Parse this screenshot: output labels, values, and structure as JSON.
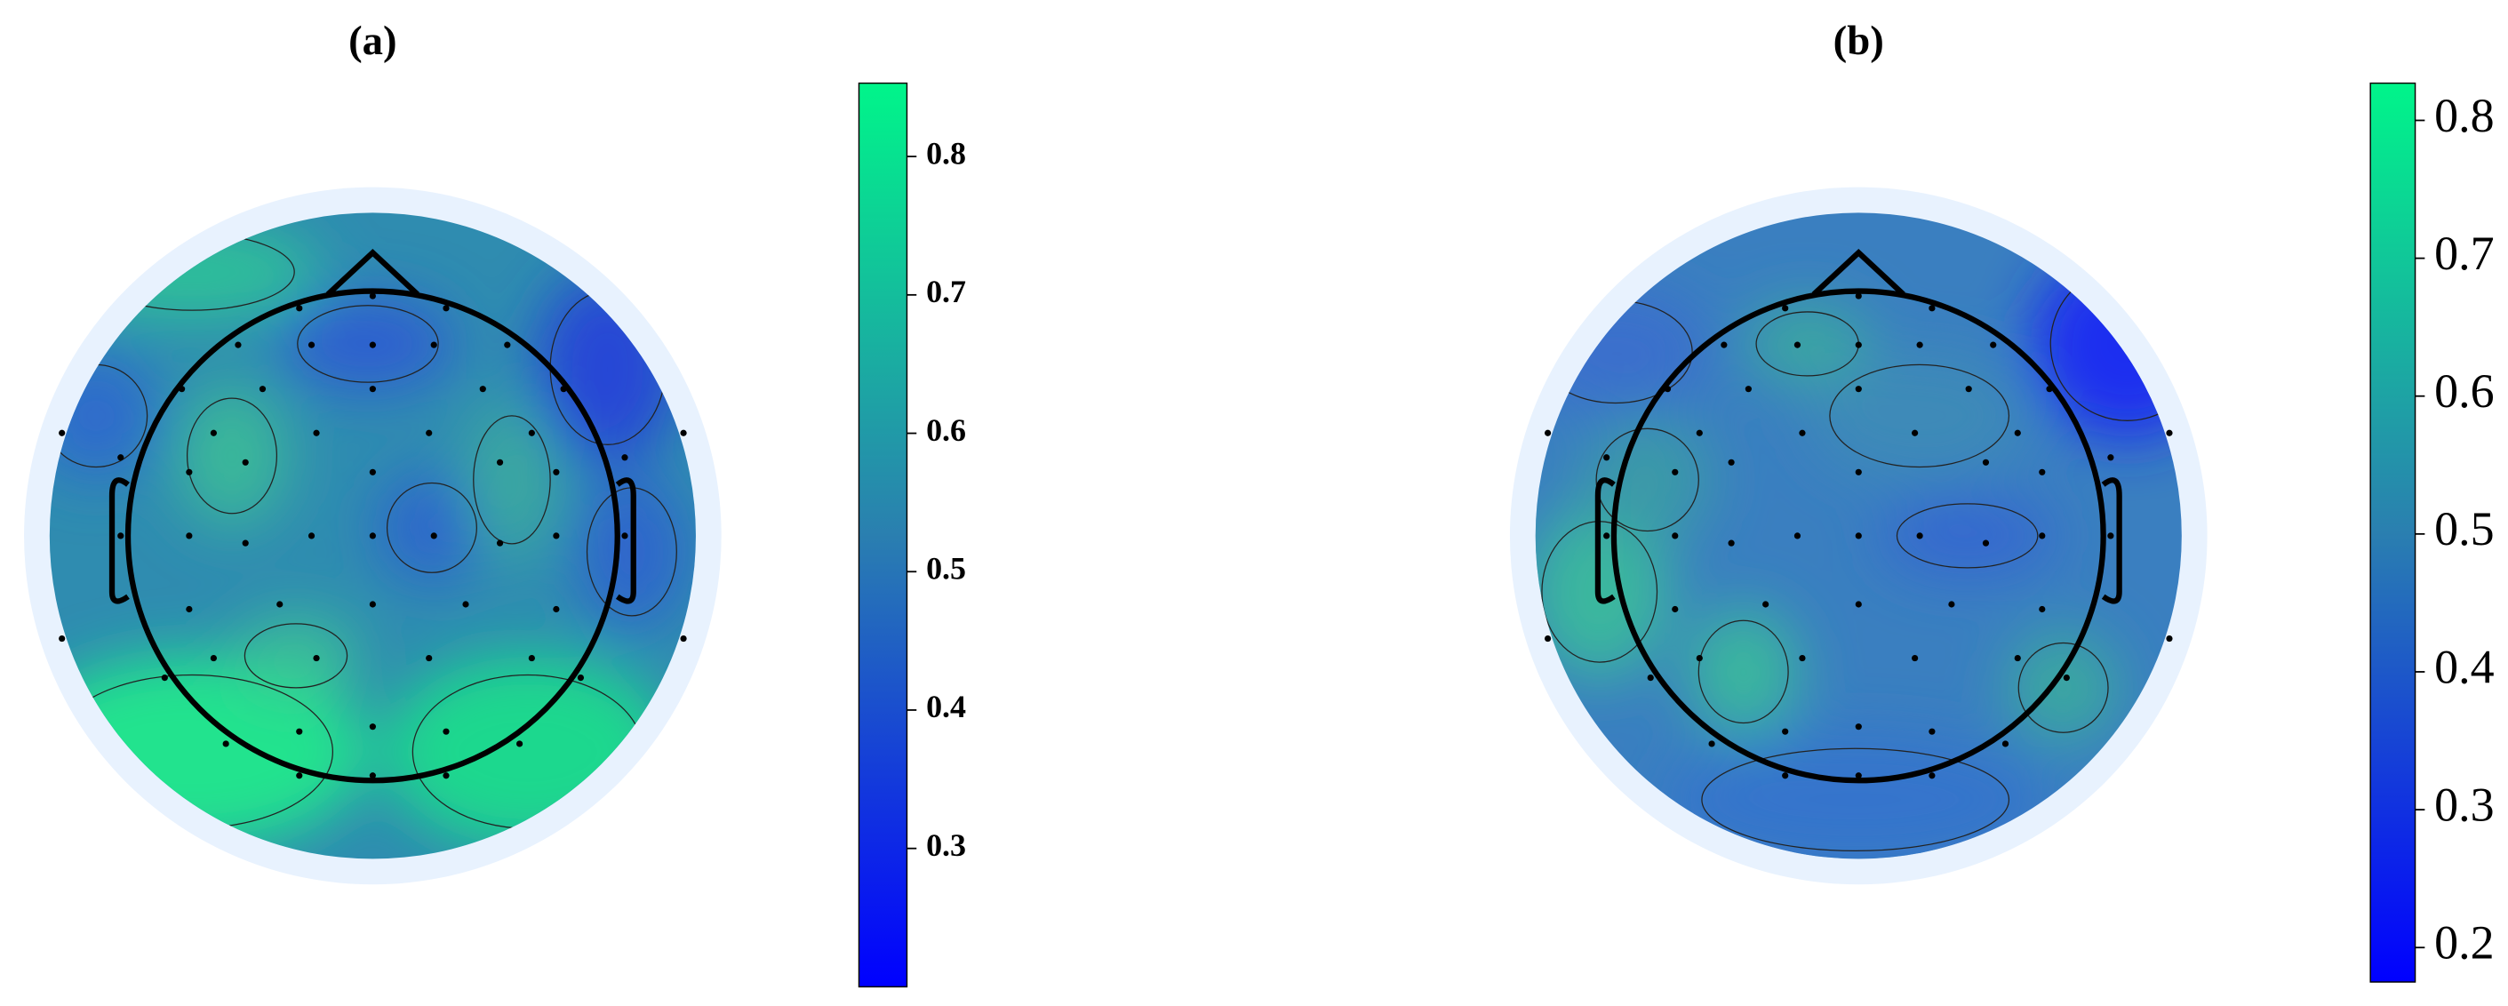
{
  "chart_data": [
    {
      "type": "topomap",
      "title": "(a)",
      "clim": [
        0.2,
        0.853
      ],
      "cticks": [
        0.3,
        0.4,
        0.5,
        0.6,
        0.7,
        0.8
      ],
      "colormap": [
        "#0000ff",
        "#2a7fb0",
        "#00f58a"
      ]
    },
    {
      "type": "topomap",
      "title": "(b)",
      "clim": [
        0.175,
        0.827
      ],
      "cticks": [
        0.2,
        0.3,
        0.4,
        0.5,
        0.6,
        0.7,
        0.8
      ],
      "colormap": [
        "#0000ff",
        "#2a7fb0",
        "#00f58a"
      ]
    }
  ]
}
